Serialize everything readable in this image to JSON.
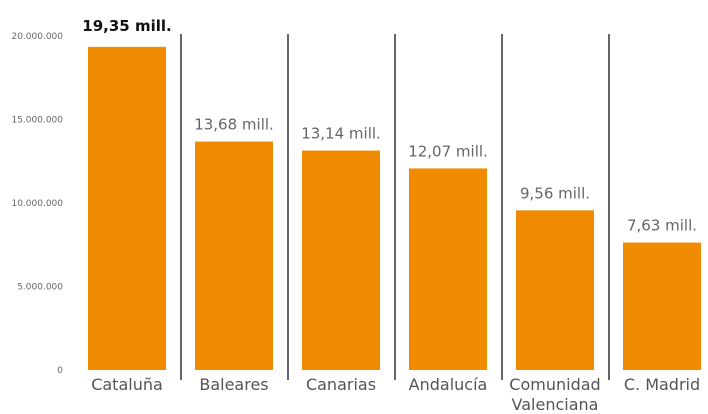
{
  "chart_data": {
    "type": "bar",
    "categories": [
      "Cataluña",
      "Baleares",
      "Canarias",
      "Andalucía",
      "Comunidad Valenciana",
      "C. Madrid"
    ],
    "category_lines": [
      [
        "Cataluña"
      ],
      [
        "Baleares"
      ],
      [
        "Canarias"
      ],
      [
        "Andalucía"
      ],
      [
        "Comunidad",
        "Valenciana"
      ],
      [
        "C. Madrid"
      ]
    ],
    "values": [
      19350000,
      13680000,
      13140000,
      12070000,
      9560000,
      7630000
    ],
    "data_labels": [
      "19,35 mill.",
      "13,68 mill.",
      "13,14 mill.",
      "12,07 mill.",
      "9,56 mill.",
      "7,63 mill."
    ],
    "highlight_index": 0,
    "ylim": [
      0,
      20000000
    ],
    "yticks": [
      0,
      5000000,
      10000000,
      15000000,
      20000000
    ],
    "ytick_labels": [
      "0",
      "5.000.000",
      "10.000.000",
      "15.000.000",
      "20.000.000"
    ],
    "bar_color": "#F08A00",
    "separator_color": "#666666",
    "grid": false,
    "title": "",
    "xlabel": "",
    "ylabel": ""
  }
}
